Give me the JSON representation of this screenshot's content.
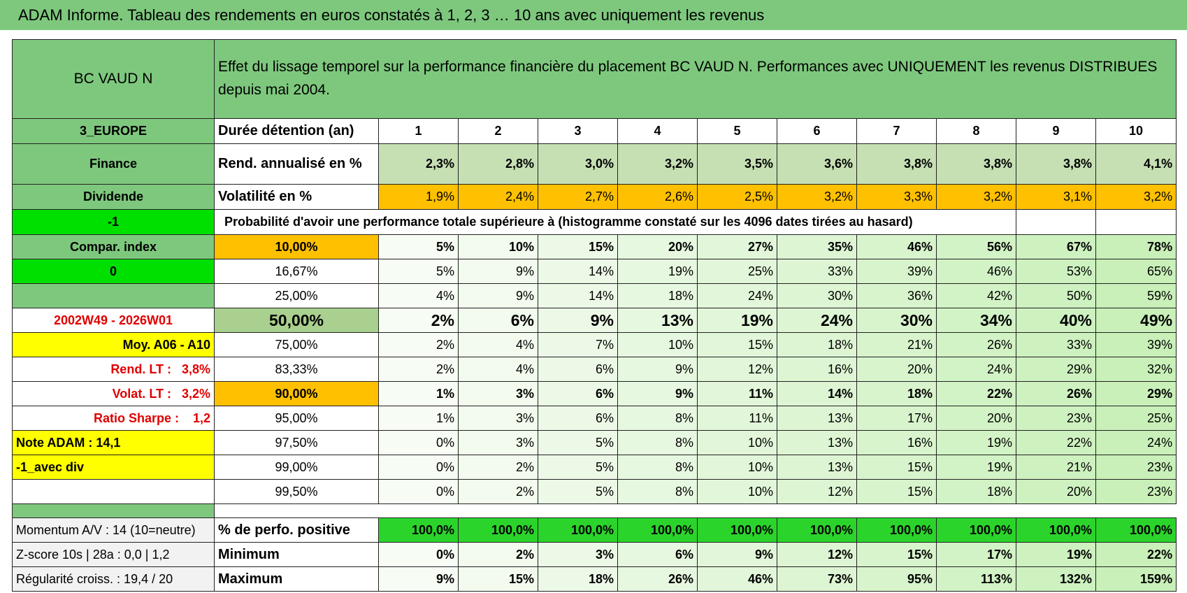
{
  "title": "ADAM Informe. Tableau des rendements en euros constatés à 1, 2, 3 … 10 ans avec uniquement les revenus",
  "instrument": "BC VAUD N",
  "description": "Effet du lissage temporel sur la performance financière du placement BC VAUD N. Performances avec UNIQUEMENT les revenus DISTRIBUES depuis mai 2004.",
  "rows": [
    {
      "side": "3_EUROPE",
      "label": "Durée détention (an)",
      "values": [
        1,
        2,
        3,
        4,
        5,
        6,
        7,
        8,
        9,
        10
      ]
    },
    {
      "side": "Finance",
      "label": "Rend. annualisé en %",
      "values": [
        "2,3%",
        "2,8%",
        "3,0%",
        "3,2%",
        "3,5%",
        "3,6%",
        "3,8%",
        "3,8%",
        "3,8%",
        "4,1%"
      ]
    },
    {
      "side": "Dividende",
      "label": "Volatilité en %",
      "values": [
        "1,9%",
        "2,4%",
        "2,7%",
        "2,6%",
        "2,5%",
        "3,2%",
        "3,3%",
        "3,2%",
        "3,1%",
        "3,2%"
      ]
    },
    {
      "side": "-1",
      "note": "Probabilité d'avoir une performance totale supérieure à (histogramme constaté sur les 4096 dates tirées au hasard)"
    },
    {
      "side": "Compar. index",
      "label": "10,00%",
      "values": [
        "5%",
        "10%",
        "15%",
        "20%",
        "27%",
        "35%",
        "46%",
        "56%",
        "67%",
        "78%"
      ]
    },
    {
      "side": "0",
      "label": "16,67%",
      "values": [
        "5%",
        "9%",
        "14%",
        "19%",
        "25%",
        "33%",
        "39%",
        "46%",
        "53%",
        "65%"
      ]
    },
    {
      "label": "25,00%",
      "values": [
        "4%",
        "9%",
        "14%",
        "18%",
        "24%",
        "30%",
        "36%",
        "42%",
        "50%",
        "59%"
      ]
    },
    {
      "side": "2002W49 - 2026W01",
      "label": "50,00%",
      "values": [
        "2%",
        "6%",
        "9%",
        "13%",
        "19%",
        "24%",
        "30%",
        "34%",
        "40%",
        "49%"
      ]
    },
    {
      "side": "Moy. A06 - A10",
      "label": "75,00%",
      "values": [
        "2%",
        "4%",
        "7%",
        "10%",
        "15%",
        "18%",
        "21%",
        "26%",
        "33%",
        "39%"
      ]
    },
    {
      "side": "Rend. LT :   3,8%",
      "label": "83,33%",
      "values": [
        "2%",
        "4%",
        "6%",
        "9%",
        "12%",
        "16%",
        "20%",
        "24%",
        "29%",
        "32%"
      ]
    },
    {
      "side": "Volat. LT :   3,2%",
      "label": "90,00%",
      "values": [
        "1%",
        "3%",
        "6%",
        "9%",
        "11%",
        "14%",
        "18%",
        "22%",
        "26%",
        "29%"
      ]
    },
    {
      "side": "Ratio Sharpe :    1,2",
      "label": "95,00%",
      "values": [
        "1%",
        "3%",
        "6%",
        "8%",
        "11%",
        "13%",
        "17%",
        "20%",
        "23%",
        "25%"
      ]
    },
    {
      "side": "Note ADAM : 14,1",
      "label": "97,50%",
      "values": [
        "0%",
        "3%",
        "5%",
        "8%",
        "10%",
        "13%",
        "16%",
        "19%",
        "22%",
        "24%"
      ]
    },
    {
      "side": "-1_avec div",
      "label": "99,00%",
      "values": [
        "0%",
        "2%",
        "5%",
        "8%",
        "10%",
        "13%",
        "15%",
        "19%",
        "21%",
        "23%"
      ]
    },
    {
      "label": "99,50%",
      "values": [
        "0%",
        "2%",
        "5%",
        "8%",
        "10%",
        "12%",
        "15%",
        "18%",
        "20%",
        "23%"
      ]
    },
    {
      "side": "Momentum A/V : 14 (10=neutre)",
      "label": "% de perfo. positive",
      "values": [
        "100,0%",
        "100,0%",
        "100,0%",
        "100,0%",
        "100,0%",
        "100,0%",
        "100,0%",
        "100,0%",
        "100,0%",
        "100,0%"
      ]
    },
    {
      "side": "Z-score 10s | 28a : 0,0 | 1,2",
      "label": "Minimum",
      "values": [
        "0%",
        "2%",
        "3%",
        "6%",
        "9%",
        "12%",
        "15%",
        "17%",
        "19%",
        "22%"
      ]
    },
    {
      "side": "Régularité croiss. : 19,4 / 20",
      "label": "Maximum",
      "values": [
        "9%",
        "15%",
        "18%",
        "26%",
        "46%",
        "73%",
        "95%",
        "113%",
        "132%",
        "159%"
      ]
    }
  ]
}
